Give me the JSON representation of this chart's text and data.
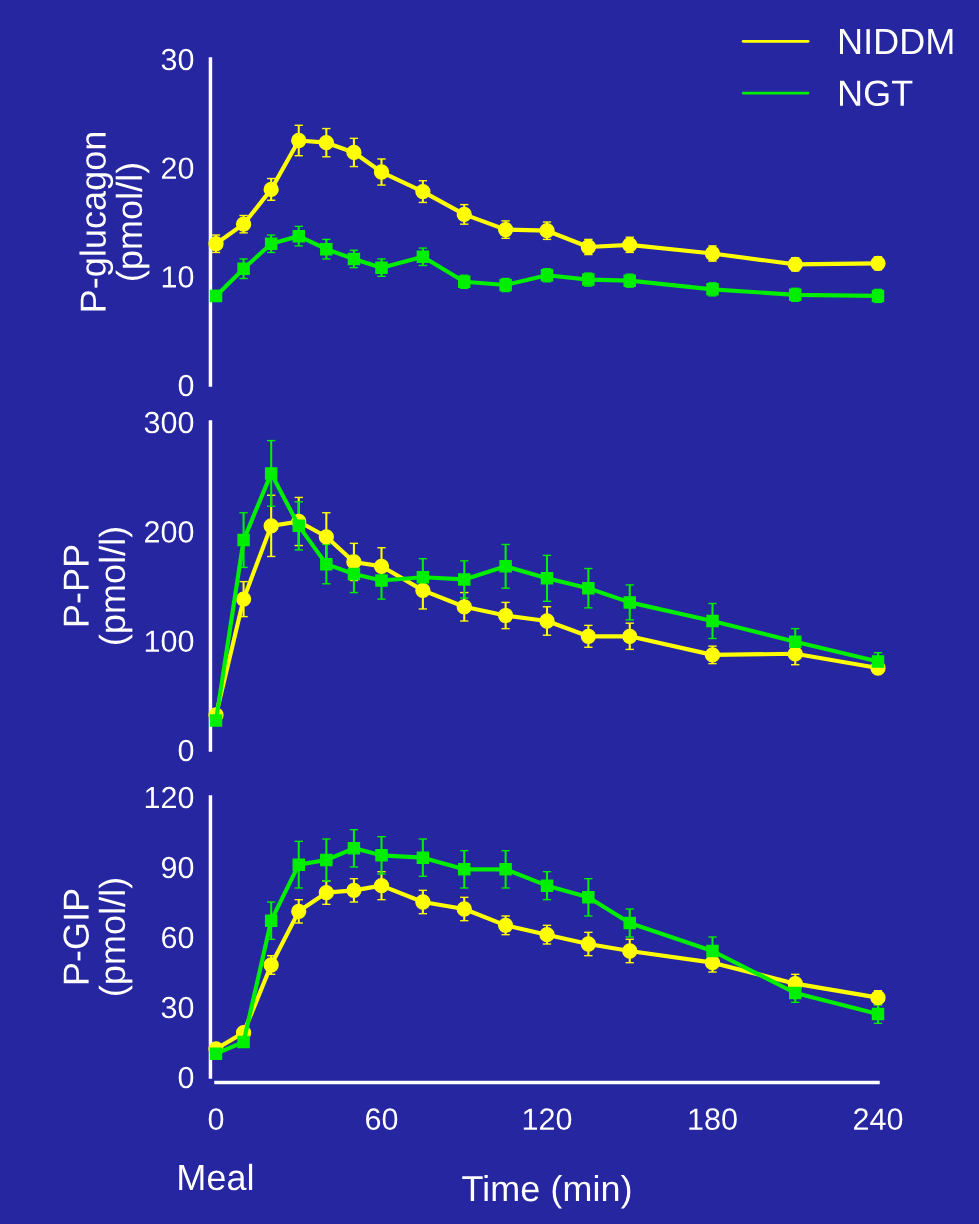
{
  "chart_data": [
    {
      "type": "line",
      "ylabel": "P-glucagon\n(pmol/l)",
      "x": [
        0,
        10,
        20,
        30,
        40,
        50,
        60,
        75,
        90,
        105,
        120,
        135,
        150,
        180,
        210,
        240
      ],
      "xlim": [
        0,
        240
      ],
      "ylim": [
        0,
        30
      ],
      "yticks": [
        0,
        10,
        20,
        30
      ],
      "tick_labels": "y",
      "legend": "top right",
      "grid": false,
      "series": [
        {
          "name": "NIDDM",
          "color": "#ffff00",
          "marker": "circle",
          "values": [
            13.0,
            14.8,
            18.0,
            22.5,
            22.3,
            21.4,
            19.6,
            17.8,
            15.7,
            14.3,
            14.2,
            12.7,
            12.9,
            12.1,
            11.1,
            11.2
          ],
          "errors": [
            0.8,
            0.8,
            1.0,
            1.4,
            1.3,
            1.3,
            1.2,
            1.0,
            0.9,
            0.8,
            0.8,
            0.7,
            0.7,
            0.7,
            0.6,
            0.6
          ]
        },
        {
          "name": "NGT",
          "color": "#00ee00",
          "marker": "square",
          "values": [
            8.2,
            10.7,
            13.0,
            13.7,
            12.5,
            11.6,
            10.8,
            11.8,
            9.5,
            9.2,
            10.1,
            9.7,
            9.6,
            8.8,
            8.3,
            8.2
          ],
          "errors": [
            0.5,
            0.9,
            0.8,
            0.9,
            0.9,
            0.8,
            0.8,
            0.8,
            0.6,
            0.6,
            0.6,
            0.6,
            0.6,
            0.6,
            0.6,
            0.6
          ]
        }
      ]
    },
    {
      "type": "line",
      "ylabel": "P-PP\n(pmol/l)",
      "x": [
        0,
        10,
        20,
        30,
        40,
        50,
        60,
        75,
        90,
        105,
        120,
        135,
        150,
        180,
        210,
        240
      ],
      "xlim": [
        0,
        240
      ],
      "ylim": [
        0,
        300
      ],
      "yticks": [
        0,
        100,
        200,
        300
      ],
      "tick_labels": "y",
      "grid": false,
      "series": [
        {
          "color": "#ffff00",
          "marker": "circle",
          "values": [
            32,
            138,
            205,
            209,
            195,
            172,
            168,
            146,
            131,
            123,
            118,
            104,
            104,
            87,
            88,
            75
          ],
          "errors": [
            3,
            16,
            28,
            22,
            22,
            17,
            17,
            17,
            13,
            12,
            13,
            10,
            12,
            8,
            10,
            5
          ]
        },
        {
          "color": "#00ee00",
          "marker": "square",
          "values": [
            27,
            192,
            253,
            205,
            170,
            161,
            155,
            158,
            156,
            168,
            157,
            148,
            135,
            118,
            99,
            81
          ],
          "errors": [
            3,
            25,
            30,
            22,
            18,
            17,
            17,
            17,
            17,
            20,
            21,
            18,
            16,
            16,
            12,
            8
          ]
        }
      ]
    },
    {
      "type": "line",
      "ylabel": "P-GIP\n(pmol/l)",
      "xlabel": "Time (min)",
      "annotations": [
        "Meal"
      ],
      "x": [
        0,
        10,
        20,
        30,
        40,
        50,
        60,
        75,
        90,
        105,
        120,
        135,
        150,
        180,
        210,
        240
      ],
      "xlim": [
        0,
        240
      ],
      "xticks": [
        0,
        60,
        120,
        180,
        240
      ],
      "ylim": [
        0,
        120
      ],
      "yticks": [
        0,
        30,
        60,
        90,
        120
      ],
      "grid": false,
      "series": [
        {
          "color": "#ffff00",
          "marker": "circle",
          "values": [
            12,
            19,
            48,
            71,
            79,
            80,
            82,
            75,
            72,
            65,
            61,
            57,
            54,
            49,
            40,
            34
          ],
          "errors": [
            2,
            2,
            4,
            5,
            5,
            5,
            6,
            5,
            5,
            4,
            4,
            5,
            5,
            4,
            4,
            3
          ]
        },
        {
          "color": "#00ee00",
          "marker": "square",
          "values": [
            10,
            15,
            67,
            91,
            93,
            98,
            95,
            94,
            89,
            89,
            82,
            77,
            66,
            54,
            36,
            27
          ],
          "errors": [
            2,
            1,
            8,
            10,
            9,
            8,
            8,
            8,
            8,
            8,
            6,
            8,
            6,
            6,
            4,
            4
          ]
        }
      ]
    }
  ]
}
